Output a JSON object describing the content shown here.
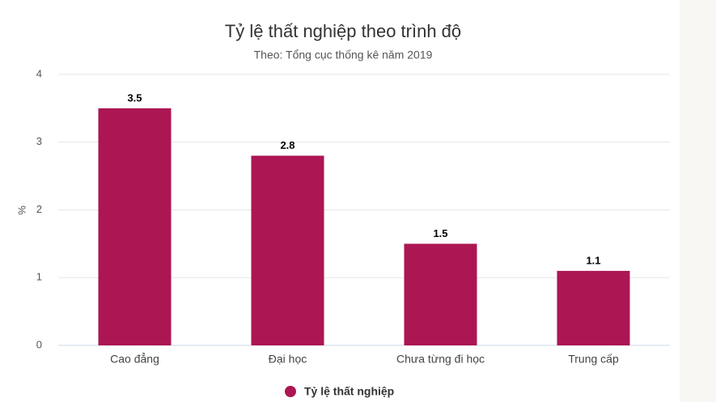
{
  "chart_data": {
    "type": "bar",
    "title": "Tỷ lệ thất nghiệp theo trình độ",
    "subtitle": "Theo: Tổng cục thống kê năm 2019",
    "y_label": "%",
    "categories": [
      "Cao đẳng",
      "Đại học",
      "Chưa từng đi học",
      "Trung cấp"
    ],
    "series": [
      {
        "name": "Tỷ lệ thất nghiệp",
        "color": "#ac1653",
        "values": [
          3.5,
          2.8,
          1.5,
          1.1
        ]
      }
    ],
    "ylim": [
      0,
      4
    ],
    "yticks": [
      0,
      1,
      2,
      3,
      4
    ],
    "grid": true,
    "legend": "bottom"
  }
}
